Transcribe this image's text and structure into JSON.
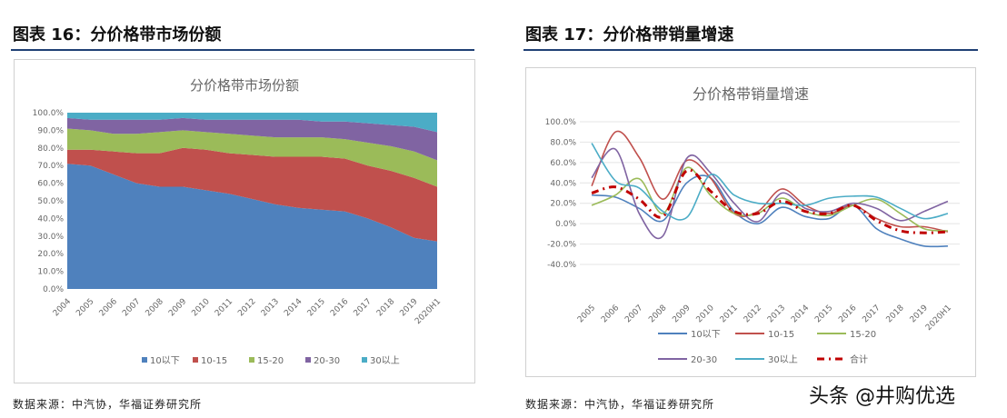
{
  "left": {
    "header": "图表 16：分价格带市场份额",
    "source": "数据来源：中汽协，华福证券研究所"
  },
  "right": {
    "header": "图表 17：分价格带销量增速",
    "source": "数据来源：中汽协，华福证券研究所"
  },
  "watermark": "头条 @井购优选",
  "chart_data": [
    {
      "type": "area",
      "stacked": true,
      "title": "分价格带市场份额",
      "categories": [
        "2004",
        "2005",
        "2006",
        "2007",
        "2008",
        "2009",
        "2010",
        "2011",
        "2012",
        "2013",
        "2014",
        "2015",
        "2016",
        "2017",
        "2018",
        "2019",
        "2020H1"
      ],
      "ylim": [
        0,
        100
      ],
      "yticks": [
        "0.0%",
        "10.0%",
        "20.0%",
        "30.0%",
        "40.0%",
        "50.0%",
        "60.0%",
        "70.0%",
        "80.0%",
        "90.0%",
        "100.0%"
      ],
      "legend_position": "bottom",
      "series": [
        {
          "name": "10以下",
          "color": "#4f81bd",
          "values": [
            71,
            70,
            65,
            60,
            58,
            58,
            56,
            54,
            51,
            48,
            46,
            45,
            44,
            40,
            35,
            29,
            27
          ]
        },
        {
          "name": "10-15",
          "color": "#c0504d",
          "values": [
            8,
            9,
            13,
            17,
            19,
            22,
            23,
            23,
            25,
            27,
            29,
            30,
            30,
            30,
            32,
            34,
            31
          ]
        },
        {
          "name": "15-20",
          "color": "#9bbb59",
          "values": [
            12,
            11,
            10,
            11,
            12,
            10,
            10,
            11,
            11,
            11,
            11,
            11,
            11,
            13,
            14,
            15,
            15
          ]
        },
        {
          "name": "20-30",
          "color": "#8064a2",
          "values": [
            6,
            6,
            8,
            8,
            7,
            7,
            7,
            8,
            9,
            10,
            10,
            9,
            10,
            11,
            12,
            14,
            16
          ]
        },
        {
          "name": "30以上",
          "color": "#4bacc6",
          "values": [
            3,
            4,
            4,
            4,
            4,
            3,
            4,
            4,
            4,
            4,
            4,
            5,
            5,
            6,
            7,
            8,
            11
          ]
        }
      ]
    },
    {
      "type": "line",
      "title": "分价格带销量增速",
      "categories": [
        "2005",
        "2006",
        "2007",
        "2008",
        "2009",
        "2010",
        "2011",
        "2012",
        "2013",
        "2014",
        "2015",
        "2016",
        "2017",
        "2018",
        "2019",
        "2020H1"
      ],
      "ylim": [
        -40,
        100
      ],
      "yticks": [
        "-40.0%",
        "-20.0%",
        "0.0%",
        "20.0%",
        "40.0%",
        "60.0%",
        "80.0%",
        "100.0%"
      ],
      "grid": true,
      "legend_position": "bottom",
      "series": [
        {
          "name": "10以下",
          "color": "#4f81bd",
          "values": [
            28,
            26,
            15,
            3,
            40,
            45,
            12,
            0,
            16,
            7,
            5,
            18,
            -5,
            -15,
            -22,
            -22
          ]
        },
        {
          "name": "10-15",
          "color": "#c0504d",
          "values": [
            37,
            90,
            65,
            24,
            62,
            45,
            10,
            12,
            34,
            18,
            10,
            18,
            5,
            -3,
            -3,
            -8
          ]
        },
        {
          "name": "15-20",
          "color": "#9bbb59",
          "values": [
            18,
            28,
            44,
            10,
            55,
            28,
            10,
            10,
            25,
            12,
            8,
            18,
            24,
            10,
            -5,
            -7
          ]
        },
        {
          "name": "20-30",
          "color": "#8064a2",
          "values": [
            45,
            73,
            10,
            -12,
            64,
            50,
            20,
            2,
            30,
            15,
            12,
            20,
            15,
            3,
            12,
            22
          ]
        },
        {
          "name": "30以上",
          "color": "#4bacc6",
          "values": [
            79,
            42,
            35,
            12,
            6,
            48,
            28,
            20,
            20,
            18,
            25,
            27,
            26,
            15,
            5,
            10
          ]
        },
        {
          "name": "合计",
          "color": "#c00000",
          "dashed": true,
          "values": [
            30,
            36,
            24,
            7,
            52,
            32,
            12,
            10,
            22,
            12,
            10,
            18,
            3,
            -7,
            -9,
            -8
          ]
        }
      ]
    }
  ]
}
